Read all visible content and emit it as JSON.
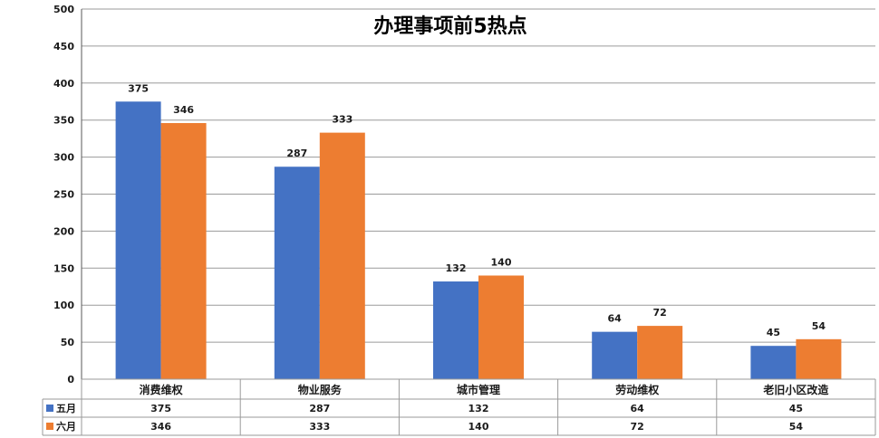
{
  "colors": {
    "accent_blue": "#4472C4",
    "accent_orange": "#ED7D31",
    "grid": "#9a9a9a",
    "axis": "#595959"
  },
  "chart_data": {
    "type": "bar",
    "title": "办理事项前5热点",
    "categories": [
      "消费维权",
      "物业服务",
      "城市管理",
      "劳动维权",
      "老旧小区改造"
    ],
    "series": [
      {
        "name": "五月",
        "values": [
          375,
          287,
          132,
          64,
          45
        ],
        "color": "#4472C4"
      },
      {
        "name": "六月",
        "values": [
          346,
          333,
          140,
          72,
          54
        ],
        "color": "#ED7D31"
      }
    ],
    "ylim": [
      0,
      500
    ],
    "yticks": [
      0,
      50,
      100,
      150,
      200,
      250,
      300,
      350,
      400,
      450,
      500
    ],
    "grid": true,
    "legend": "data-table-below",
    "data_labels": true
  }
}
